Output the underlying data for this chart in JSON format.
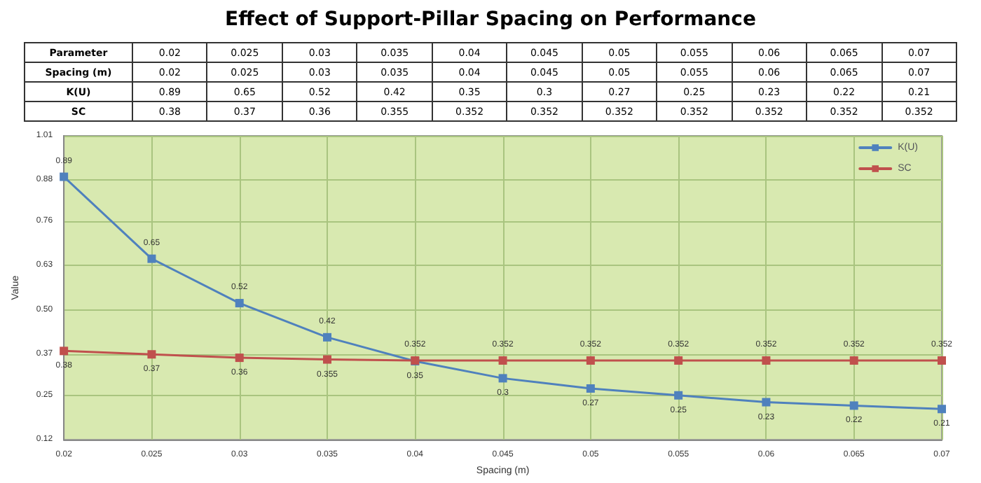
{
  "chart_data": {
    "type": "line",
    "title": "Effect of Support-Pillar Spacing on Performance",
    "xlabel": "Spacing (m)",
    "ylabel": "Value",
    "annotations": [
      "Parameter",
      "0.02",
      "0.025",
      "0.03",
      "0.035",
      "0.04",
      "0.045",
      "0.05",
      "0.055",
      "0.06",
      "0.065",
      "0.07",
      "Spacing (m)",
      "0.02",
      "0.025",
      "0.03",
      "0.035",
      "0.04",
      "0.045",
      "0.05",
      "0.055",
      "0.06",
      "0.065",
      "0.07",
      "K(U)",
      "0.89",
      "0.65",
      "0.52",
      "0.42",
      "0.35",
      "0.3",
      "0.27",
      "0.25",
      "0.23",
      "0.22",
      "0.21",
      "SC",
      "0.38",
      "0.37",
      "0.36",
      "0.355",
      "0.352",
      "0.352",
      "0.352",
      "0.352",
      "0.352",
      "0.352",
      "0.352"
    ],
    "x": [
      0.02,
      0.025,
      0.03,
      0.035,
      0.04,
      0.045,
      0.05,
      0.055,
      0.06,
      0.065,
      0.07
    ],
    "series": [
      {
        "name": "K(U)",
        "color": "#4f81bd",
        "values": [
          0.89,
          0.65,
          0.52,
          0.42,
          0.35,
          0.3,
          0.27,
          0.25,
          0.23,
          0.22,
          0.21
        ]
      },
      {
        "name": "SC",
        "color": "#c0504d",
        "values": [
          0.38,
          0.37,
          0.36,
          0.355,
          0.352,
          0.352,
          0.352,
          0.352,
          0.352,
          0.352,
          0.352
        ]
      }
    ],
    "xlim": [
      0.02,
      0.07
    ],
    "xticks": [
      0.02,
      0.025,
      0.03,
      0.035,
      0.04,
      0.045,
      0.05,
      0.055,
      0.06,
      0.065,
      0.07
    ],
    "ylim": [
      0.12,
      1.01
    ],
    "yticks": [
      0.12,
      0.25,
      0.37,
      {
        "value": 0.5,
        "label": "0.50"
      },
      0.63,
      0.76,
      0.88,
      1.01
    ],
    "grid": true,
    "legend": "top right",
    "marker": "square",
    "line_style": "solid",
    "data_labels": true
  }
}
